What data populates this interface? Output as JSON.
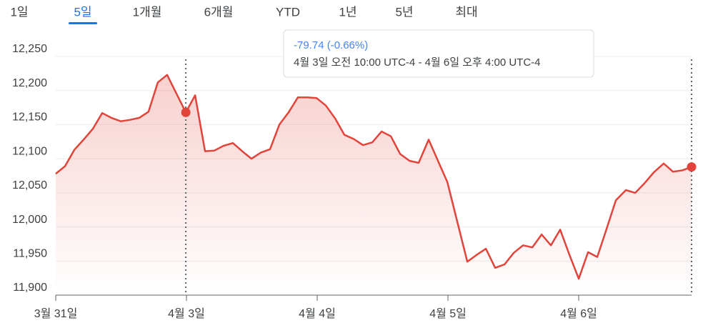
{
  "tabs": [
    "1일",
    "5일",
    "1개월",
    "6개월",
    "YTD",
    "1년",
    "5년",
    "최대"
  ],
  "active_tab": 1,
  "tooltip": {
    "change": "-79.74 (-0.66%)",
    "range": "4월 3일 오전 10:00 UTC-4 - 4월 6일 오후 4:00 UTC-4"
  },
  "chart_data": {
    "type": "area",
    "color": "#e0443a",
    "grid": true,
    "x": [
      0,
      0.071,
      0.142,
      0.213,
      0.284,
      0.355,
      0.426,
      0.497,
      0.568,
      0.639,
      0.71,
      0.781,
      0.852,
      0.995,
      1.066,
      1.142,
      1.213,
      1.284,
      1.355,
      1.426,
      1.497,
      1.568,
      1.639,
      1.71,
      1.781,
      1.852,
      1.923,
      1.995,
      2.066,
      2.137,
      2.208,
      2.279,
      2.35,
      2.421,
      2.492,
      2.563,
      2.634,
      2.705,
      2.776,
      2.852,
      2.923,
      2.995,
      3.148,
      3.219,
      3.29,
      3.361,
      3.432,
      3.503,
      3.574,
      3.645,
      3.716,
      3.787,
      3.858,
      3.929,
      4.0,
      4.071,
      4.142,
      4.213,
      4.284,
      4.361,
      4.432,
      4.503,
      4.574,
      4.65,
      4.721,
      4.792,
      4.863
    ],
    "values": [
      12078,
      12089,
      12113,
      12128,
      12144,
      12167,
      12160,
      12155,
      12157,
      12160,
      12169,
      12212,
      12223,
      12168,
      12193,
      12111,
      12112,
      12119,
      12123,
      12111,
      12100,
      12109,
      12114,
      12150,
      12168,
      12190,
      12190,
      12189,
      12178,
      12159,
      12135,
      12129,
      12120,
      12124,
      12140,
      12133,
      12107,
      12097,
      12094,
      12128,
      12097,
      12066,
      11949,
      11959,
      11968,
      11940,
      11945,
      11962,
      11973,
      11970,
      11989,
      11973,
      11996,
      11959,
      11924,
      11963,
      11956,
      11997,
      12039,
      12054,
      12050,
      12064,
      12080,
      12093,
      12081,
      12083,
      12088
    ],
    "highlight_points": [
      13,
      66
    ],
    "xlim": [
      0,
      4.863
    ],
    "xticks": [
      {
        "value": 0,
        "label": "3월 31일"
      },
      {
        "value": 1,
        "label": "4월 3일"
      },
      {
        "value": 2,
        "label": "4월 4일"
      },
      {
        "value": 3,
        "label": "4월 5일"
      },
      {
        "value": 4,
        "label": "4월 6일"
      }
    ],
    "ylim": [
      11900,
      12250
    ],
    "yticks": [
      {
        "value": 11900,
        "label": "11,900"
      },
      {
        "value": 11950,
        "label": "11,950"
      },
      {
        "value": 12000,
        "label": "12,000"
      },
      {
        "value": 12050,
        "label": "12,050"
      },
      {
        "value": 12100,
        "label": "12,100"
      },
      {
        "value": 12150,
        "label": "12,150"
      },
      {
        "value": 12200,
        "label": "12,200"
      },
      {
        "value": 12250,
        "label": "12,250"
      }
    ]
  }
}
